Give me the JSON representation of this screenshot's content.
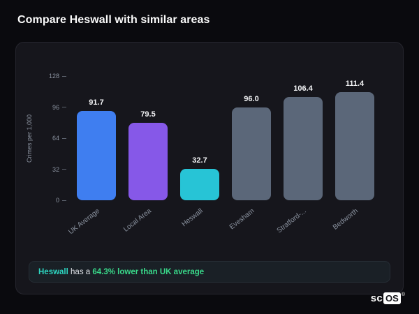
{
  "page": {
    "title": "Compare Heswall with similar areas"
  },
  "chart_data": {
    "type": "bar",
    "title": "",
    "ylabel": "Crimes per 1,000",
    "ylim": [
      0,
      128
    ],
    "yticks": [
      0,
      32,
      64,
      96,
      128
    ],
    "categories": [
      "UK Average",
      "Local Area",
      "Heswall",
      "Evesham",
      "Stratford-...",
      "Bedworth"
    ],
    "values": [
      91.7,
      79.5,
      32.7,
      96.0,
      106.4,
      111.4
    ],
    "value_labels": [
      "91.7",
      "79.5",
      "32.7",
      "96.0",
      "106.4",
      "111.4"
    ],
    "bar_colors": [
      "#3f7ef0",
      "#8658e8",
      "#27c4d6",
      "#5b6779",
      "#5b6779",
      "#5b6779"
    ],
    "grid": false,
    "legend": false
  },
  "note": {
    "area": "Heswall",
    "middle": " has a ",
    "highlight": "64.3% lower than UK average"
  },
  "logo": {
    "plain": "sc",
    "boxed": "OS",
    "registered": "®"
  }
}
